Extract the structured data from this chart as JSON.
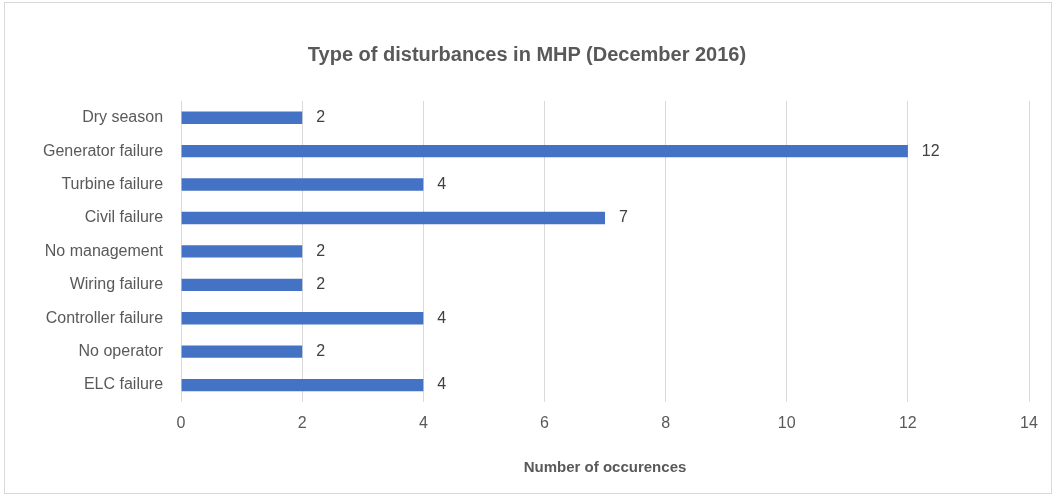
{
  "chart_data": {
    "type": "bar",
    "orientation": "horizontal",
    "title": "Type of disturbances in MHP (December 2016)",
    "xlabel": "Number of occurences",
    "categories": [
      "Dry season",
      "Generator failure",
      "Turbine failure",
      "Civil failure",
      "No management",
      "Wiring failure",
      "Controller failure",
      "No operator",
      "ELC failure"
    ],
    "values": [
      2,
      12,
      4,
      7,
      2,
      2,
      4,
      2,
      4
    ],
    "color": "#4472c4",
    "xlim": [
      0,
      14
    ],
    "xticks": [
      0,
      2,
      4,
      6,
      8,
      10,
      12,
      14
    ],
    "grid": "x",
    "data_labels": true
  }
}
